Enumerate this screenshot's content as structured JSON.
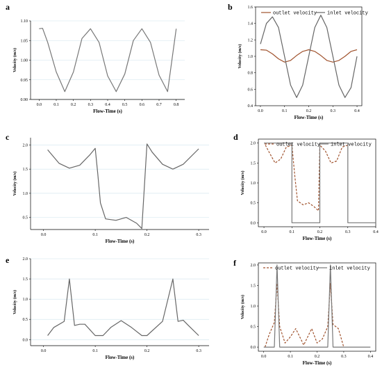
{
  "panel_labels": [
    "a",
    "b",
    "c",
    "d",
    "e",
    "f"
  ],
  "chart_data": [
    {
      "panel": "a",
      "type": "line",
      "xlabel": "Flow-Time (s)",
      "ylabel": "Velocity (m/s)",
      "xticks": [
        "0.0",
        "0.1",
        "0.2",
        "0.3",
        "0.4",
        "0.5",
        "0.6",
        "0.7",
        "0.8"
      ],
      "yticks": [
        "0.90",
        "0.95",
        "1.00",
        "1.05",
        "1.10"
      ],
      "xlim": [
        -0.05,
        0.85
      ],
      "ylim": [
        0.9,
        1.1
      ],
      "series": [
        {
          "x": [
            0,
            0.02,
            0.05,
            0.1,
            0.15,
            0.2,
            0.25,
            0.3,
            0.35,
            0.4,
            0.45,
            0.5,
            0.55,
            0.6,
            0.65,
            0.7,
            0.75,
            0.8
          ],
          "y": [
            1.08,
            1.081,
            1.045,
            0.97,
            0.92,
            0.97,
            1.055,
            1.08,
            1.045,
            0.96,
            0.92,
            0.965,
            1.05,
            1.08,
            1.045,
            0.962,
            0.92,
            1.08
          ],
          "color": "#777777",
          "dash": "solid"
        }
      ]
    },
    {
      "panel": "b",
      "type": "line",
      "xlabel": "Flow-Time (s)",
      "ylabel": "Velocity (m/s)",
      "xticks": [
        "0.0",
        "0.1",
        "0.2",
        "0.3",
        "0.4"
      ],
      "yticks": [
        "0.4",
        "0.6",
        "0.8",
        "1.0",
        "1.2",
        "1.4",
        "1.6"
      ],
      "xlim": [
        -0.02,
        0.42
      ],
      "ylim": [
        0.4,
        1.6
      ],
      "legend": [
        "outlet velocity",
        "inlet velocity"
      ],
      "series": [
        {
          "name": "outlet velocity",
          "x": [
            0,
            0.025,
            0.05,
            0.075,
            0.1,
            0.125,
            0.15,
            0.175,
            0.2,
            0.225,
            0.25,
            0.275,
            0.3,
            0.325,
            0.35,
            0.375,
            0.4
          ],
          "y": [
            1.08,
            1.075,
            1.03,
            0.97,
            0.93,
            0.95,
            1.01,
            1.06,
            1.08,
            1.06,
            1.01,
            0.95,
            0.93,
            0.95,
            1.0,
            1.06,
            1.08
          ],
          "color": "#a0522d",
          "dash": "solid"
        },
        {
          "name": "inlet velocity",
          "x": [
            0,
            0.025,
            0.05,
            0.075,
            0.1,
            0.125,
            0.15,
            0.175,
            0.2,
            0.225,
            0.25,
            0.275,
            0.3,
            0.325,
            0.35,
            0.375,
            0.4
          ],
          "y": [
            1.15,
            1.4,
            1.48,
            1.35,
            1.0,
            0.65,
            0.5,
            0.65,
            1.0,
            1.35,
            1.5,
            1.35,
            1.0,
            0.65,
            0.5,
            0.62,
            1.0
          ],
          "color": "#666666",
          "dash": "solid"
        }
      ]
    },
    {
      "panel": "c",
      "type": "line",
      "xlabel": "Flow-Time (s)",
      "ylabel": "Velocity (m/s)",
      "xticks": [
        "0.0",
        "0.1",
        "0.2",
        "0.3"
      ],
      "yticks": [
        "0.5",
        "1.0",
        "1.5",
        "2.0"
      ],
      "xlim": [
        -0.025,
        0.32
      ],
      "ylim": [
        0.25,
        2.15
      ],
      "series": [
        {
          "x": [
            0.008,
            0.03,
            0.05,
            0.07,
            0.09,
            0.1,
            0.105,
            0.11,
            0.12,
            0.14,
            0.16,
            0.18,
            0.19,
            0.2,
            0.21,
            0.23,
            0.25,
            0.27,
            0.3
          ],
          "y": [
            1.9,
            1.62,
            1.52,
            1.58,
            1.8,
            1.93,
            1.4,
            0.8,
            0.47,
            0.44,
            0.5,
            0.38,
            0.27,
            2.02,
            1.85,
            1.6,
            1.5,
            1.6,
            1.92
          ],
          "color": "#666666",
          "dash": "solid"
        }
      ]
    },
    {
      "panel": "d",
      "type": "line",
      "xlabel": "Flow-Time (s)",
      "ylabel": "Velocity (m/s)",
      "xticks": [
        "0.0",
        "0.1",
        "0.2",
        "0.3",
        "0.4"
      ],
      "yticks": [
        "0.0",
        "0.5",
        "1.0",
        "1.5",
        "2.0"
      ],
      "xlim": [
        -0.02,
        0.4
      ],
      "ylim": [
        -0.1,
        2.1
      ],
      "legend": [
        "outlet velocity",
        "inlet velocity"
      ],
      "series": [
        {
          "name": "outlet velocity",
          "x": [
            0.005,
            0.02,
            0.04,
            0.06,
            0.08,
            0.1,
            0.11,
            0.12,
            0.14,
            0.16,
            0.18,
            0.195,
            0.2,
            0.22,
            0.24,
            0.26,
            0.28,
            0.3
          ],
          "y": [
            1.95,
            1.75,
            1.5,
            1.6,
            1.9,
            1.95,
            1.2,
            0.55,
            0.45,
            0.5,
            0.4,
            0.3,
            1.95,
            1.8,
            1.5,
            1.55,
            1.9,
            1.95
          ],
          "color": "#a0522d",
          "dash": "dashed"
        },
        {
          "name": "inlet velocity",
          "x": [
            0,
            0.1,
            0.1,
            0.2,
            0.2,
            0.3,
            0.3,
            0.4
          ],
          "y": [
            2,
            2,
            0,
            0,
            2,
            2,
            0,
            0
          ],
          "color": "#777777",
          "dash": "solid"
        }
      ]
    },
    {
      "panel": "e",
      "type": "line",
      "xlabel": "Flow-Time (s)",
      "ylabel": "Velocity (m/s)",
      "xticks": [
        "0.0",
        "0.1",
        "0.2",
        "0.3"
      ],
      "yticks": [
        "0.0",
        "0.5",
        "1.0",
        "1.5",
        "2.0"
      ],
      "xlim": [
        -0.025,
        0.32
      ],
      "ylim": [
        -0.15,
        2.0
      ],
      "series": [
        {
          "x": [
            0.008,
            0.02,
            0.04,
            0.05,
            0.06,
            0.07,
            0.08,
            0.1,
            0.115,
            0.13,
            0.15,
            0.17,
            0.19,
            0.2,
            0.23,
            0.25,
            0.26,
            0.27,
            0.28,
            0.3
          ],
          "y": [
            0.1,
            0.3,
            0.45,
            1.5,
            0.35,
            0.38,
            0.38,
            0.1,
            0.1,
            0.3,
            0.47,
            0.3,
            0.1,
            0.1,
            0.45,
            1.5,
            0.45,
            0.48,
            0.35,
            0.1
          ],
          "color": "#666666",
          "dash": "solid"
        }
      ]
    },
    {
      "panel": "f",
      "type": "line",
      "xlabel": "Flow-Time (s)",
      "ylabel": "Velocity (m/s)",
      "xticks": [
        "0.0",
        "0.1",
        "0.2",
        "0.3",
        "0.4"
      ],
      "yticks": [
        "0.0",
        "0.5",
        "1.0",
        "1.5",
        "2.0"
      ],
      "xlim": [
        -0.02,
        0.42
      ],
      "ylim": [
        -0.1,
        2.05
      ],
      "legend": [
        "outlet velocity",
        "inlet velocity"
      ],
      "series": [
        {
          "name": "outlet velocity",
          "x": [
            0.005,
            0.02,
            0.04,
            0.05,
            0.06,
            0.08,
            0.1,
            0.12,
            0.15,
            0.18,
            0.2,
            0.22,
            0.24,
            0.25,
            0.26,
            0.28,
            0.3
          ],
          "y": [
            0.0,
            0.3,
            0.6,
            1.55,
            0.5,
            0.1,
            0.25,
            0.45,
            0.05,
            0.45,
            0.1,
            0.2,
            0.5,
            1.55,
            0.55,
            0.45,
            0.0
          ],
          "color": "#a0522d",
          "dash": "dashed"
        },
        {
          "name": "inlet velocity",
          "x": [
            0,
            0.04,
            0.05,
            0.06,
            0.24,
            0.25,
            0.26,
            0.4
          ],
          "y": [
            0,
            0,
            2,
            0,
            0,
            2,
            0,
            0
          ],
          "color": "#777777",
          "dash": "solid"
        }
      ]
    }
  ]
}
